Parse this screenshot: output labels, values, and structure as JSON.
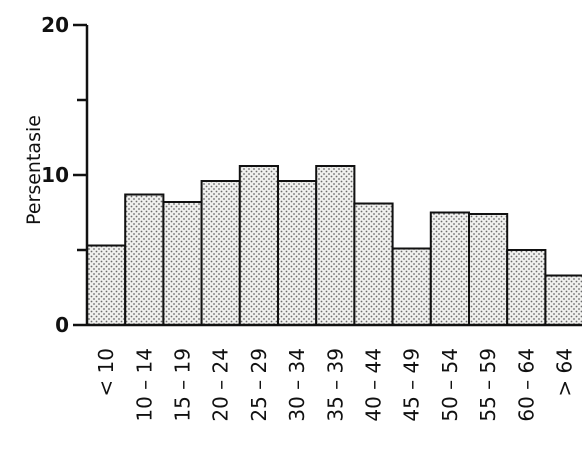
{
  "chart_data": {
    "type": "bar",
    "categories": [
      "< 10",
      "10 – 14",
      "15 – 19",
      "20 – 24",
      "25 – 29",
      "30 – 34",
      "35 – 39",
      "40 – 44",
      "45 – 49",
      "50 – 54",
      "55 – 59",
      "60 – 64",
      "> 64"
    ],
    "values": [
      5.3,
      8.7,
      8.2,
      9.6,
      10.6,
      9.6,
      10.6,
      8.1,
      5.1,
      7.5,
      7.4,
      5.0,
      3.3
    ],
    "ylabel": "Persentasie",
    "xlabel": "",
    "ylim": [
      0,
      20
    ],
    "yticks": [
      0,
      10,
      20
    ],
    "grid": false,
    "bar_fill": "dotted",
    "colors": {
      "ink": "#111111",
      "bar_fill": "#f0f0ee",
      "dot": "#6b6b6b",
      "background": "#ffffff"
    }
  }
}
